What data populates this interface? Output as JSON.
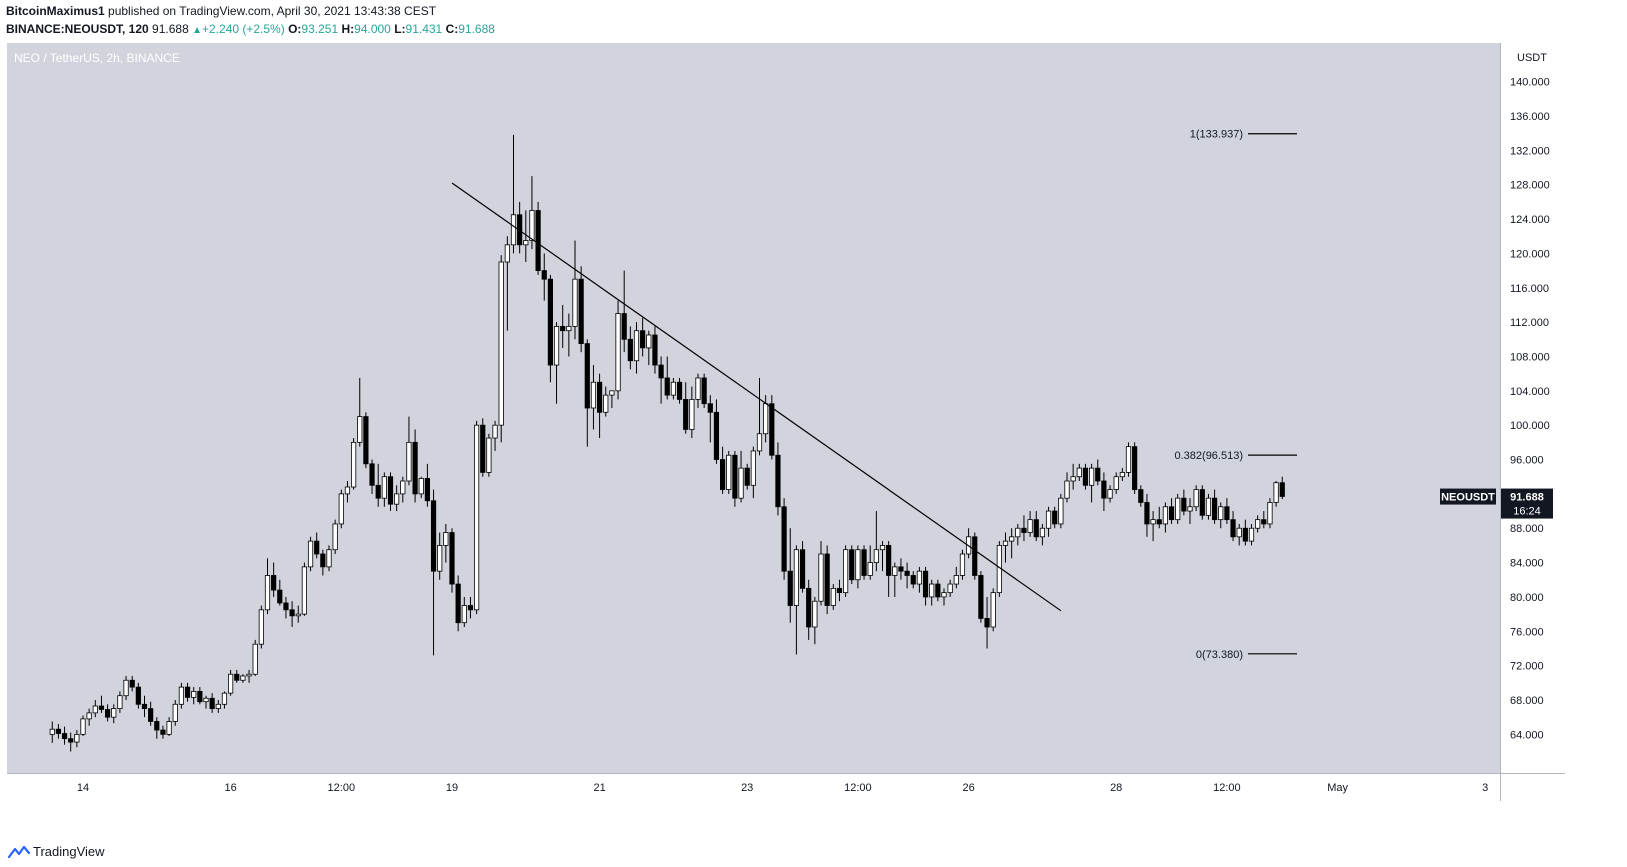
{
  "header": {
    "author": "BitcoinMaximus1",
    "published_text": " published on TradingView.com, April 30, 2021 13:43:38 CEST",
    "symbol": "BINANCE:NEOUSDT, 120",
    "last_price": "91.688",
    "change": "+2.240 (+2.5%)",
    "open_label": "O:",
    "open_value": "93.251",
    "high_label": "H:",
    "high_value": "94.000",
    "low_label": "L:",
    "low_value": "91.431",
    "close_label": "C:",
    "close_value": "91.688"
  },
  "footer": {
    "brand": "TradingView",
    "brand_icon": "tradingview-logo-icon"
  },
  "colors": {
    "plot_bg": "#d1d4dc",
    "candle_up": "#ffffff",
    "candle_down": "#000000",
    "wick": "#000000",
    "price_tag_bg": "#131722",
    "accent_up": "#26a69a"
  },
  "chart_data": {
    "type": "candlestick",
    "title": "NEO / TetherUS, 2h, BINANCE",
    "currency_label": "USDT",
    "y_ticks": [
      64,
      68,
      72,
      76,
      80,
      84,
      88,
      92,
      96,
      100,
      104,
      108,
      112,
      116,
      120,
      124,
      128,
      132,
      136,
      140
    ],
    "y_tick_labels": [
      "64.000",
      "68.000",
      "72.000",
      "76.000",
      "80.000",
      "84.000",
      "88.000",
      "96.000",
      "100.000",
      "104.000",
      "108.000",
      "112.000",
      "116.000",
      "120.000",
      "124.000",
      "128.000",
      "132.000",
      "136.000",
      "140.000"
    ],
    "ylim": [
      59.5,
      144.5
    ],
    "x_ticks": [
      {
        "label": "14",
        "date": "2021-04-14"
      },
      {
        "label": "16",
        "date": "2021-04-16"
      },
      {
        "label": "12:00",
        "date": "2021-04-17T12:00"
      },
      {
        "label": "19",
        "date": "2021-04-19"
      },
      {
        "label": "21",
        "date": "2021-04-21"
      },
      {
        "label": "23",
        "date": "2021-04-23"
      },
      {
        "label": "12:00",
        "date": "2021-04-24T12:00"
      },
      {
        "label": "26",
        "date": "2021-04-26"
      },
      {
        "label": "28",
        "date": "2021-04-28"
      },
      {
        "label": "12:00",
        "date": "2021-04-29T12:00"
      },
      {
        "label": "May",
        "date": "2021-05-01"
      },
      {
        "label": "3",
        "date": "2021-05-03"
      }
    ],
    "last_price": {
      "value": 91.688,
      "label": "91.688",
      "symbol": "NEOUSDT",
      "countdown": "16:24"
    },
    "fib_levels": [
      {
        "ratio_label": "1(133.937)",
        "price": 133.937
      },
      {
        "ratio_label": "0.382(96.513)",
        "price": 96.513
      },
      {
        "ratio_label": "0(73.380)",
        "price": 73.38
      }
    ],
    "trendline": {
      "start": {
        "date": "2021-04-19",
        "price": 128.2
      },
      "end": {
        "date": "2021-04-27T06:00",
        "price": 78.4
      }
    },
    "candles_ohlc": [
      [
        64.0,
        65.5,
        63.0,
        64.6
      ],
      [
        64.6,
        65.2,
        63.5,
        64.1
      ],
      [
        64.1,
        64.9,
        62.8,
        63.5
      ],
      [
        63.5,
        64.2,
        62.0,
        63.1
      ],
      [
        63.1,
        64.5,
        62.5,
        64.0
      ],
      [
        64.0,
        66.2,
        63.8,
        65.8
      ],
      [
        65.8,
        67.0,
        65.0,
        66.5
      ],
      [
        66.5,
        68.0,
        66.0,
        67.3
      ],
      [
        67.3,
        68.5,
        66.5,
        66.9
      ],
      [
        66.9,
        67.5,
        65.5,
        66.0
      ],
      [
        66.0,
        67.5,
        65.3,
        67.0
      ],
      [
        67.0,
        69.0,
        66.5,
        68.5
      ],
      [
        68.5,
        70.8,
        68.0,
        70.3
      ],
      [
        70.3,
        70.8,
        69.0,
        69.5
      ],
      [
        69.5,
        70.0,
        67.0,
        67.5
      ],
      [
        67.5,
        68.5,
        66.0,
        67.0
      ],
      [
        67.0,
        67.8,
        65.0,
        65.5
      ],
      [
        65.5,
        66.0,
        63.5,
        64.5
      ],
      [
        64.5,
        65.0,
        63.5,
        64.0
      ],
      [
        64.0,
        66.0,
        63.8,
        65.5
      ],
      [
        65.5,
        68.0,
        65.0,
        67.5
      ],
      [
        67.5,
        70.0,
        67.0,
        69.5
      ],
      [
        69.5,
        70.0,
        67.8,
        68.3
      ],
      [
        68.3,
        69.5,
        67.5,
        69.0
      ],
      [
        69.0,
        69.5,
        67.5,
        67.8
      ],
      [
        67.8,
        68.5,
        67.0,
        68.2
      ],
      [
        68.2,
        68.8,
        66.5,
        67.0
      ],
      [
        67.0,
        68.0,
        66.5,
        67.5
      ],
      [
        67.5,
        69.0,
        67.0,
        68.8
      ],
      [
        68.8,
        71.5,
        68.5,
        71.0
      ],
      [
        71.0,
        71.5,
        70.0,
        70.3
      ],
      [
        70.3,
        71.0,
        70.0,
        70.8
      ],
      [
        70.8,
        71.5,
        70.0,
        71.0
      ],
      [
        71.0,
        75.0,
        70.8,
        74.5
      ],
      [
        74.5,
        79.0,
        74.0,
        78.5
      ],
      [
        78.5,
        84.5,
        78.0,
        82.5
      ],
      [
        82.5,
        84.0,
        80.0,
        80.8
      ],
      [
        80.8,
        82.0,
        79.0,
        79.3
      ],
      [
        79.3,
        80.0,
        77.5,
        78.5
      ],
      [
        78.5,
        79.5,
        76.5,
        77.8
      ],
      [
        77.8,
        79.0,
        77.0,
        78.0
      ],
      [
        78.0,
        84.0,
        77.8,
        83.5
      ],
      [
        83.5,
        87.0,
        83.0,
        86.5
      ],
      [
        86.5,
        87.5,
        84.5,
        85.0
      ],
      [
        85.0,
        85.5,
        82.5,
        83.5
      ],
      [
        83.5,
        86.0,
        83.0,
        85.5
      ],
      [
        85.5,
        89.0,
        85.0,
        88.5
      ],
      [
        88.5,
        92.5,
        88.0,
        92.0
      ],
      [
        92.0,
        93.5,
        91.0,
        92.8
      ],
      [
        92.8,
        98.5,
        92.5,
        98.0
      ],
      [
        98.0,
        105.5,
        97.5,
        101.0
      ],
      [
        101.0,
        101.5,
        95.0,
        95.5
      ],
      [
        95.5,
        96.0,
        92.0,
        93.0
      ],
      [
        93.0,
        95.5,
        90.5,
        91.5
      ],
      [
        91.5,
        94.5,
        90.5,
        94.0
      ],
      [
        94.0,
        94.5,
        90.0,
        90.8
      ],
      [
        90.8,
        93.0,
        90.0,
        92.0
      ],
      [
        92.0,
        94.0,
        91.0,
        93.5
      ],
      [
        93.5,
        101.0,
        93.0,
        98.0
      ],
      [
        98.0,
        99.5,
        91.0,
        92.0
      ],
      [
        92.0,
        94.0,
        91.5,
        93.8
      ],
      [
        93.8,
        95.5,
        90.5,
        91.2
      ],
      [
        91.2,
        92.5,
        73.2,
        83.0
      ],
      [
        83.0,
        87.5,
        82.0,
        86.0
      ],
      [
        86.0,
        88.5,
        84.0,
        87.5
      ],
      [
        87.5,
        88.0,
        80.5,
        81.5
      ],
      [
        81.5,
        82.5,
        76.0,
        77.0
      ],
      [
        77.0,
        80.0,
        76.5,
        79.0
      ],
      [
        79.0,
        80.0,
        77.5,
        78.5
      ],
      [
        78.5,
        100.5,
        78.0,
        100.0
      ],
      [
        100.0,
        100.8,
        94.0,
        94.5
      ],
      [
        94.5,
        99.0,
        94.0,
        98.5
      ],
      [
        98.5,
        100.5,
        97.0,
        100.0
      ],
      [
        100.0,
        119.8,
        98.0,
        119.0
      ],
      [
        119.0,
        122.0,
        111.0,
        121.0
      ],
      [
        121.0,
        133.8,
        120.0,
        124.5
      ],
      [
        124.5,
        126.0,
        120.0,
        121.0
      ],
      [
        121.0,
        125.0,
        119.0,
        121.5
      ],
      [
        121.5,
        129.0,
        120.5,
        125.0
      ],
      [
        125.0,
        126.0,
        117.5,
        118.0
      ],
      [
        118.0,
        120.0,
        114.5,
        117.0
      ],
      [
        117.0,
        117.5,
        105.0,
        107.0
      ],
      [
        107.0,
        112.0,
        102.5,
        111.5
      ],
      [
        111.5,
        114.0,
        109.0,
        111.0
      ],
      [
        111.0,
        113.0,
        108.0,
        111.5
      ],
      [
        111.5,
        121.5,
        110.0,
        117.0
      ],
      [
        117.0,
        118.5,
        108.5,
        109.5
      ],
      [
        109.5,
        110.0,
        97.5,
        102.0
      ],
      [
        102.0,
        107.0,
        99.5,
        105.0
      ],
      [
        105.0,
        106.0,
        98.5,
        101.5
      ],
      [
        101.5,
        104.5,
        101.0,
        103.5
      ],
      [
        103.5,
        104.0,
        102.0,
        104.0
      ],
      [
        104.0,
        114.5,
        103.0,
        113.0
      ],
      [
        113.0,
        118.0,
        108.5,
        110.0
      ],
      [
        110.0,
        111.5,
        106.5,
        107.5
      ],
      [
        107.5,
        112.0,
        106.0,
        111.0
      ],
      [
        111.0,
        112.5,
        108.0,
        109.0
      ],
      [
        109.0,
        111.0,
        107.0,
        110.5
      ],
      [
        110.5,
        111.5,
        106.0,
        107.0
      ],
      [
        107.0,
        108.0,
        102.5,
        105.5
      ],
      [
        105.5,
        108.0,
        103.0,
        103.5
      ],
      [
        103.5,
        105.5,
        103.0,
        105.0
      ],
      [
        105.0,
        105.5,
        102.5,
        103.0
      ],
      [
        103.0,
        105.0,
        99.0,
        99.5
      ],
      [
        99.5,
        104.5,
        98.5,
        103.0
      ],
      [
        103.0,
        106.0,
        102.0,
        105.5
      ],
      [
        105.5,
        106.0,
        102.0,
        102.5
      ],
      [
        102.5,
        103.5,
        98.0,
        101.5
      ],
      [
        101.5,
        103.0,
        95.5,
        96.0
      ],
      [
        96.0,
        97.5,
        92.0,
        92.5
      ],
      [
        92.5,
        97.0,
        92.0,
        96.5
      ],
      [
        96.5,
        97.0,
        90.5,
        91.5
      ],
      [
        91.5,
        97.0,
        91.0,
        95.0
      ],
      [
        95.0,
        95.5,
        92.5,
        93.0
      ],
      [
        93.0,
        97.5,
        91.5,
        97.0
      ],
      [
        97.0,
        105.5,
        96.5,
        99.0
      ],
      [
        99.0,
        103.5,
        98.0,
        102.5
      ],
      [
        102.5,
        103.5,
        96.0,
        96.5
      ],
      [
        96.5,
        98.0,
        89.5,
        90.5
      ],
      [
        90.5,
        91.5,
        82.0,
        83.0
      ],
      [
        83.0,
        88.0,
        77.0,
        79.0
      ],
      [
        79.0,
        86.0,
        73.3,
        85.5
      ],
      [
        85.5,
        86.5,
        80.5,
        81.0
      ],
      [
        81.0,
        82.0,
        75.0,
        76.5
      ],
      [
        76.5,
        80.0,
        74.5,
        79.5
      ],
      [
        79.5,
        86.5,
        79.0,
        85.0
      ],
      [
        85.0,
        86.0,
        78.0,
        79.0
      ],
      [
        79.0,
        81.5,
        78.5,
        81.0
      ],
      [
        81.0,
        82.0,
        79.5,
        80.5
      ],
      [
        80.5,
        86.0,
        80.0,
        85.5
      ],
      [
        85.5,
        86.0,
        81.5,
        82.0
      ],
      [
        82.0,
        86.0,
        81.0,
        85.5
      ],
      [
        85.5,
        86.0,
        82.0,
        82.5
      ],
      [
        82.5,
        86.0,
        82.0,
        84.0
      ],
      [
        84.0,
        90.0,
        83.0,
        85.5
      ],
      [
        85.5,
        86.5,
        83.0,
        86.0
      ],
      [
        86.0,
        86.5,
        80.0,
        82.5
      ],
      [
        82.5,
        84.0,
        80.0,
        83.5
      ],
      [
        83.5,
        84.5,
        82.0,
        83.0
      ],
      [
        83.0,
        84.0,
        81.0,
        82.5
      ],
      [
        82.5,
        83.0,
        81.0,
        81.5
      ],
      [
        81.5,
        83.5,
        80.5,
        83.0
      ],
      [
        83.0,
        83.5,
        79.0,
        80.0
      ],
      [
        80.0,
        82.0,
        79.0,
        81.5
      ],
      [
        81.5,
        82.0,
        79.5,
        80.0
      ],
      [
        80.0,
        81.0,
        79.0,
        80.5
      ],
      [
        80.5,
        82.0,
        80.0,
        81.5
      ],
      [
        81.5,
        83.5,
        81.0,
        82.5
      ],
      [
        82.5,
        85.5,
        82.0,
        85.0
      ],
      [
        85.0,
        88.0,
        84.5,
        87.0
      ],
      [
        87.0,
        87.5,
        82.0,
        82.5
      ],
      [
        82.5,
        83.0,
        77.0,
        77.5
      ],
      [
        77.5,
        80.0,
        74.0,
        76.5
      ],
      [
        76.5,
        81.0,
        76.0,
        80.5
      ],
      [
        80.5,
        86.5,
        80.0,
        86.0
      ],
      [
        86.0,
        87.5,
        84.0,
        86.5
      ],
      [
        86.5,
        88.0,
        84.5,
        87.0
      ],
      [
        87.0,
        88.5,
        86.0,
        88.0
      ],
      [
        88.0,
        89.5,
        86.5,
        87.5
      ],
      [
        87.5,
        90.0,
        87.0,
        89.0
      ],
      [
        89.0,
        90.0,
        86.5,
        87.0
      ],
      [
        87.0,
        88.5,
        86.0,
        88.0
      ],
      [
        88.0,
        90.5,
        87.0,
        90.0
      ],
      [
        90.0,
        90.5,
        88.0,
        88.5
      ],
      [
        88.5,
        92.0,
        88.0,
        91.5
      ],
      [
        91.5,
        94.5,
        91.0,
        93.5
      ],
      [
        93.5,
        95.5,
        92.5,
        94.0
      ],
      [
        94.0,
        95.5,
        93.5,
        95.0
      ],
      [
        95.0,
        95.5,
        92.5,
        93.0
      ],
      [
        93.0,
        95.5,
        91.0,
        95.0
      ],
      [
        95.0,
        96.0,
        93.0,
        93.5
      ],
      [
        93.5,
        94.5,
        90.0,
        91.5
      ],
      [
        91.5,
        93.0,
        91.0,
        92.5
      ],
      [
        92.5,
        94.5,
        92.0,
        94.0
      ],
      [
        94.0,
        95.0,
        93.5,
        94.5
      ],
      [
        94.5,
        98.0,
        94.0,
        97.5
      ],
      [
        97.5,
        98.0,
        92.0,
        92.5
      ],
      [
        92.5,
        93.0,
        90.5,
        91.0
      ],
      [
        91.0,
        92.0,
        87.0,
        88.5
      ],
      [
        88.5,
        90.0,
        86.5,
        89.0
      ],
      [
        89.0,
        90.5,
        88.0,
        88.5
      ],
      [
        88.5,
        91.0,
        87.5,
        90.5
      ],
      [
        90.5,
        91.5,
        88.5,
        89.0
      ],
      [
        89.0,
        92.0,
        88.5,
        91.5
      ],
      [
        91.5,
        92.5,
        89.5,
        90.0
      ],
      [
        90.0,
        91.5,
        88.5,
        90.5
      ],
      [
        90.5,
        93.0,
        90.0,
        92.5
      ],
      [
        92.5,
        93.0,
        89.0,
        89.5
      ],
      [
        89.5,
        92.0,
        89.0,
        91.5
      ],
      [
        91.5,
        92.5,
        88.5,
        89.0
      ],
      [
        89.0,
        91.0,
        88.0,
        90.5
      ],
      [
        90.5,
        91.5,
        88.5,
        89.0
      ],
      [
        89.0,
        90.0,
        86.5,
        87.0
      ],
      [
        87.0,
        88.5,
        86.0,
        88.0
      ],
      [
        88.0,
        89.0,
        86.0,
        86.5
      ],
      [
        86.5,
        88.5,
        86.0,
        88.0
      ],
      [
        88.0,
        89.5,
        87.5,
        89.0
      ],
      [
        89.0,
        90.0,
        88.0,
        88.5
      ],
      [
        88.5,
        91.5,
        88.0,
        91.0
      ],
      [
        91.0,
        93.5,
        90.5,
        93.3
      ],
      [
        93.3,
        94.0,
        91.4,
        91.7
      ]
    ]
  }
}
